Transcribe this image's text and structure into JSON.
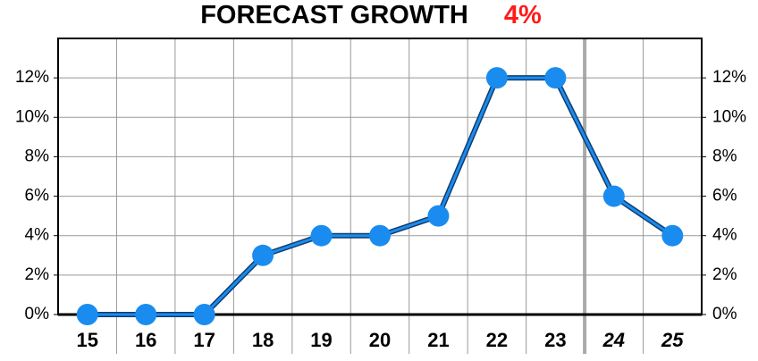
{
  "chart_data": {
    "type": "line",
    "title": "FORECAST GROWTH",
    "highlight": "4%",
    "highlight_color": "#ff1a1a",
    "categories": [
      "15",
      "16",
      "17",
      "18",
      "19",
      "20",
      "21",
      "22",
      "23",
      "24",
      "25"
    ],
    "series": [
      {
        "name": "Growth",
        "color": "#1a8cf0",
        "values": [
          0,
          0,
          0,
          3,
          4,
          4,
          5,
          12,
          12,
          6,
          4
        ]
      }
    ],
    "forecast_start_index": 9,
    "ylim": [
      0,
      14
    ],
    "yticks": [
      {
        "value": 0,
        "label": "0%"
      },
      {
        "value": 2,
        "label": "2%"
      },
      {
        "value": 4,
        "label": "4%"
      },
      {
        "value": 6,
        "label": "6%"
      },
      {
        "value": 8,
        "label": "8%"
      },
      {
        "value": 10,
        "label": "10%"
      },
      {
        "value": 12,
        "label": "12%"
      }
    ],
    "grid": true
  }
}
